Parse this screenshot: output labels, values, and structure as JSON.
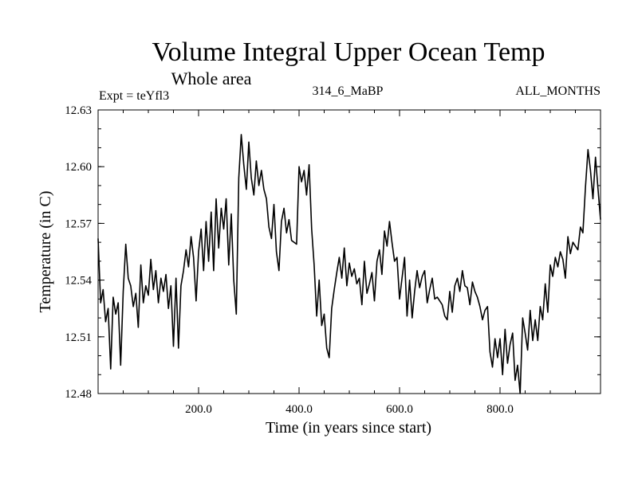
{
  "chart_data": {
    "type": "line",
    "title": "Volume Integral Upper Ocean Temp",
    "subtitle": "Whole area",
    "experiment_label": "Expt = teYfl3",
    "dataset_label": "314_6_MaBP",
    "period_label": "ALL_MONTHS",
    "xlabel": "Time (in years since start)",
    "ylabel": "Temperature (in C)",
    "xlim": [
      0,
      1000
    ],
    "ylim": [
      12.48,
      12.63
    ],
    "x_ticks": [
      {
        "value": 200,
        "label": "200.0"
      },
      {
        "value": 400,
        "label": "400.0"
      },
      {
        "value": 600,
        "label": "600.0"
      },
      {
        "value": 800,
        "label": "800.0"
      }
    ],
    "y_ticks": [
      {
        "value": 12.48,
        "label": "12.48"
      },
      {
        "value": 12.51,
        "label": "12.51"
      },
      {
        "value": 12.54,
        "label": "12.54"
      },
      {
        "value": 12.57,
        "label": "12.57"
      },
      {
        "value": 12.6,
        "label": "12.60"
      },
      {
        "value": 12.63,
        "label": "12.63"
      }
    ],
    "grid": false,
    "series": [
      {
        "name": "Volume Integral Upper Ocean Temp",
        "color": "#000000",
        "x": [
          0,
          5,
          10,
          15,
          20,
          25,
          30,
          35,
          40,
          45,
          50,
          55,
          60,
          65,
          70,
          75,
          80,
          85,
          90,
          95,
          100,
          105,
          110,
          115,
          120,
          125,
          130,
          135,
          140,
          145,
          150,
          155,
          160,
          165,
          170,
          175,
          180,
          185,
          190,
          195,
          200,
          205,
          210,
          215,
          220,
          225,
          230,
          235,
          240,
          245,
          250,
          255,
          260,
          265,
          270,
          275,
          280,
          285,
          290,
          295,
          300,
          305,
          310,
          315,
          320,
          325,
          330,
          335,
          340,
          345,
          350,
          355,
          360,
          365,
          370,
          375,
          380,
          385,
          390,
          395,
          400,
          405,
          410,
          415,
          420,
          425,
          430,
          435,
          440,
          445,
          450,
          455,
          460,
          465,
          470,
          475,
          480,
          485,
          490,
          495,
          500,
          505,
          510,
          515,
          520,
          525,
          530,
          535,
          540,
          545,
          550,
          555,
          560,
          565,
          570,
          575,
          580,
          585,
          590,
          595,
          600,
          605,
          610,
          615,
          620,
          625,
          630,
          635,
          640,
          645,
          650,
          655,
          660,
          665,
          670,
          675,
          680,
          685,
          690,
          695,
          700,
          705,
          710,
          715,
          720,
          725,
          730,
          735,
          740,
          745,
          750,
          755,
          760,
          765,
          770,
          775,
          780,
          785,
          790,
          795,
          800,
          805,
          810,
          815,
          820,
          825,
          830,
          835,
          840,
          845,
          850,
          855,
          860,
          865,
          870,
          875,
          880,
          885,
          890,
          895,
          900,
          905,
          910,
          915,
          920,
          925,
          930,
          935,
          940,
          945,
          950,
          955,
          960,
          965,
          970,
          975,
          980,
          985,
          990,
          995,
          1000
        ],
        "values": [
          12.562,
          12.528,
          12.535,
          12.518,
          12.525,
          12.493,
          12.531,
          12.522,
          12.528,
          12.495,
          12.534,
          12.559,
          12.541,
          12.537,
          12.526,
          12.533,
          12.515,
          12.548,
          12.528,
          12.537,
          12.532,
          12.551,
          12.535,
          12.545,
          12.528,
          12.541,
          12.534,
          12.543,
          12.525,
          12.537,
          12.505,
          12.541,
          12.504,
          12.537,
          12.545,
          12.556,
          12.547,
          12.563,
          12.552,
          12.529,
          12.555,
          12.567,
          12.545,
          12.571,
          12.55,
          12.576,
          12.545,
          12.583,
          12.557,
          12.578,
          12.567,
          12.583,
          12.548,
          12.575,
          12.54,
          12.522,
          12.594,
          12.617,
          12.601,
          12.588,
          12.613,
          12.594,
          12.585,
          12.603,
          12.59,
          12.598,
          12.588,
          12.583,
          12.568,
          12.562,
          12.58,
          12.555,
          12.545,
          12.571,
          12.578,
          12.565,
          12.572,
          12.561,
          12.56,
          12.559,
          12.6,
          12.592,
          12.598,
          12.585,
          12.601,
          12.567,
          12.548,
          12.521,
          12.54,
          12.516,
          12.522,
          12.504,
          12.499,
          12.525,
          12.535,
          12.544,
          12.552,
          12.541,
          12.557,
          12.537,
          12.549,
          12.542,
          12.546,
          12.538,
          12.541,
          12.527,
          12.55,
          12.533,
          12.538,
          12.544,
          12.529,
          12.55,
          12.556,
          12.543,
          12.566,
          12.558,
          12.571,
          12.56,
          12.55,
          12.552,
          12.53,
          12.541,
          12.552,
          12.521,
          12.54,
          12.52,
          12.534,
          12.545,
          12.536,
          12.542,
          12.545,
          12.528,
          12.535,
          12.541,
          12.53,
          12.531,
          12.529,
          12.527,
          12.521,
          12.519,
          12.534,
          12.523,
          12.537,
          12.541,
          12.534,
          12.545,
          12.537,
          12.536,
          12.527,
          12.539,
          12.534,
          12.531,
          12.526,
          12.519,
          12.524,
          12.526,
          12.502,
          12.494,
          12.509,
          12.499,
          12.509,
          12.49,
          12.514,
          12.496,
          12.506,
          12.512,
          12.487,
          12.495,
          12.48,
          12.52,
          12.512,
          12.503,
          12.524,
          12.508,
          12.519,
          12.508,
          12.526,
          12.519,
          12.538,
          12.523,
          12.548,
          12.542,
          12.552,
          12.547,
          12.555,
          12.551,
          12.541,
          12.563,
          12.554,
          12.56,
          12.558,
          12.556,
          12.568,
          12.565,
          12.589,
          12.609,
          12.598,
          12.583,
          12.605,
          12.588,
          12.572
        ]
      }
    ]
  }
}
